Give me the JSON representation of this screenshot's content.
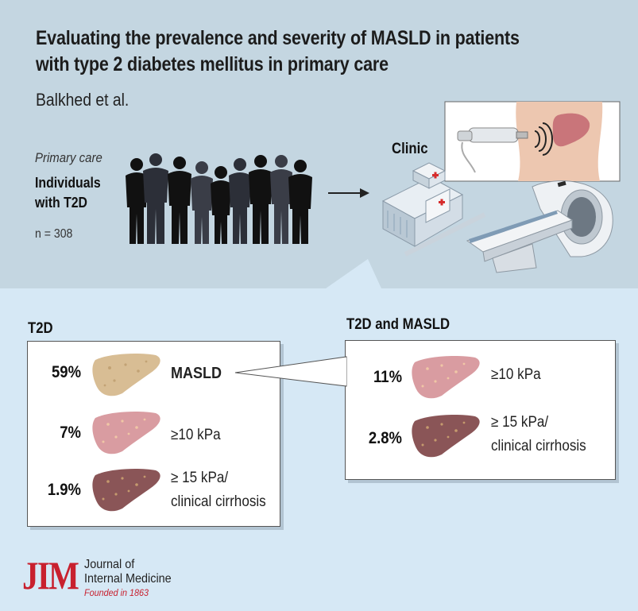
{
  "header": {
    "title": "Evaluating the prevalence and severity of MASLD in patients with type 2 diabetes mellitus in primary care",
    "authors": "Balkhed et al."
  },
  "cohort": {
    "setting": "Primary care",
    "group": "Individuals with T2D",
    "n": "n = 308"
  },
  "clinic": {
    "label": "Clinic"
  },
  "t2d_panel": {
    "heading": "T2D",
    "rows": [
      {
        "pct": "59%",
        "label": "MASLD",
        "liver": "fatty-liver-icon"
      },
      {
        "pct": "7%",
        "label": "≥10 kPa",
        "liver": "fibrotic-liver-icon"
      },
      {
        "pct": "1.9%",
        "label": "≥ 15 kPa/",
        "label2": "clinical cirrhosis",
        "liver": "cirrhotic-liver-icon"
      }
    ]
  },
  "masld_panel": {
    "heading": "T2D and MASLD",
    "rows": [
      {
        "pct": "11%",
        "label": "≥10 kPa",
        "liver": "fibrotic-liver-icon"
      },
      {
        "pct": "2.8%",
        "label": "≥ 15 kPa/",
        "label2": "clinical cirrhosis",
        "liver": "cirrhotic-liver-icon"
      }
    ]
  },
  "journal": {
    "logo": "JIM",
    "name_line1": "Journal of",
    "name_line2": "Internal Medicine",
    "tagline": "Founded in 1863"
  },
  "colors": {
    "top_band": "#c4d6e1",
    "bottom_band": "#d6e8f5",
    "fatty_liver": "#d8bd94",
    "fibrotic_liver": "#d99ca1",
    "cirrhotic_liver": "#8a5557",
    "brand_red": "#c8202e"
  }
}
